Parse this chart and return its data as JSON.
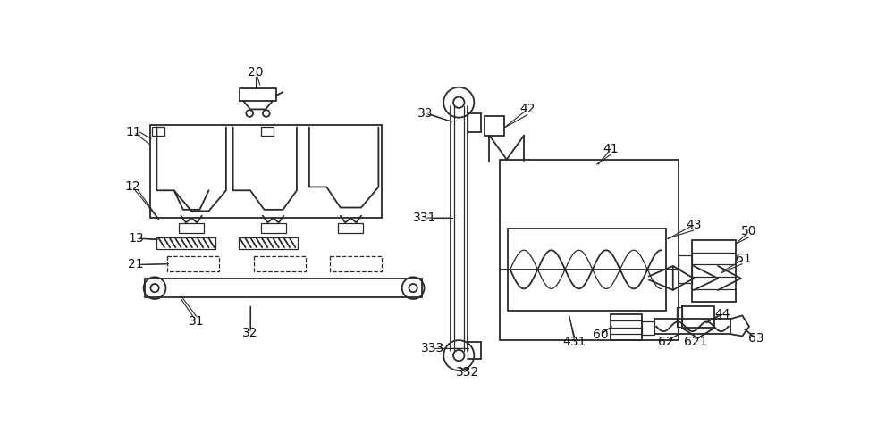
{
  "bg_color": "#ffffff",
  "line_color": "#2a2a2a",
  "label_color": "#111111",
  "fig_width": 10.0,
  "fig_height": 4.94
}
